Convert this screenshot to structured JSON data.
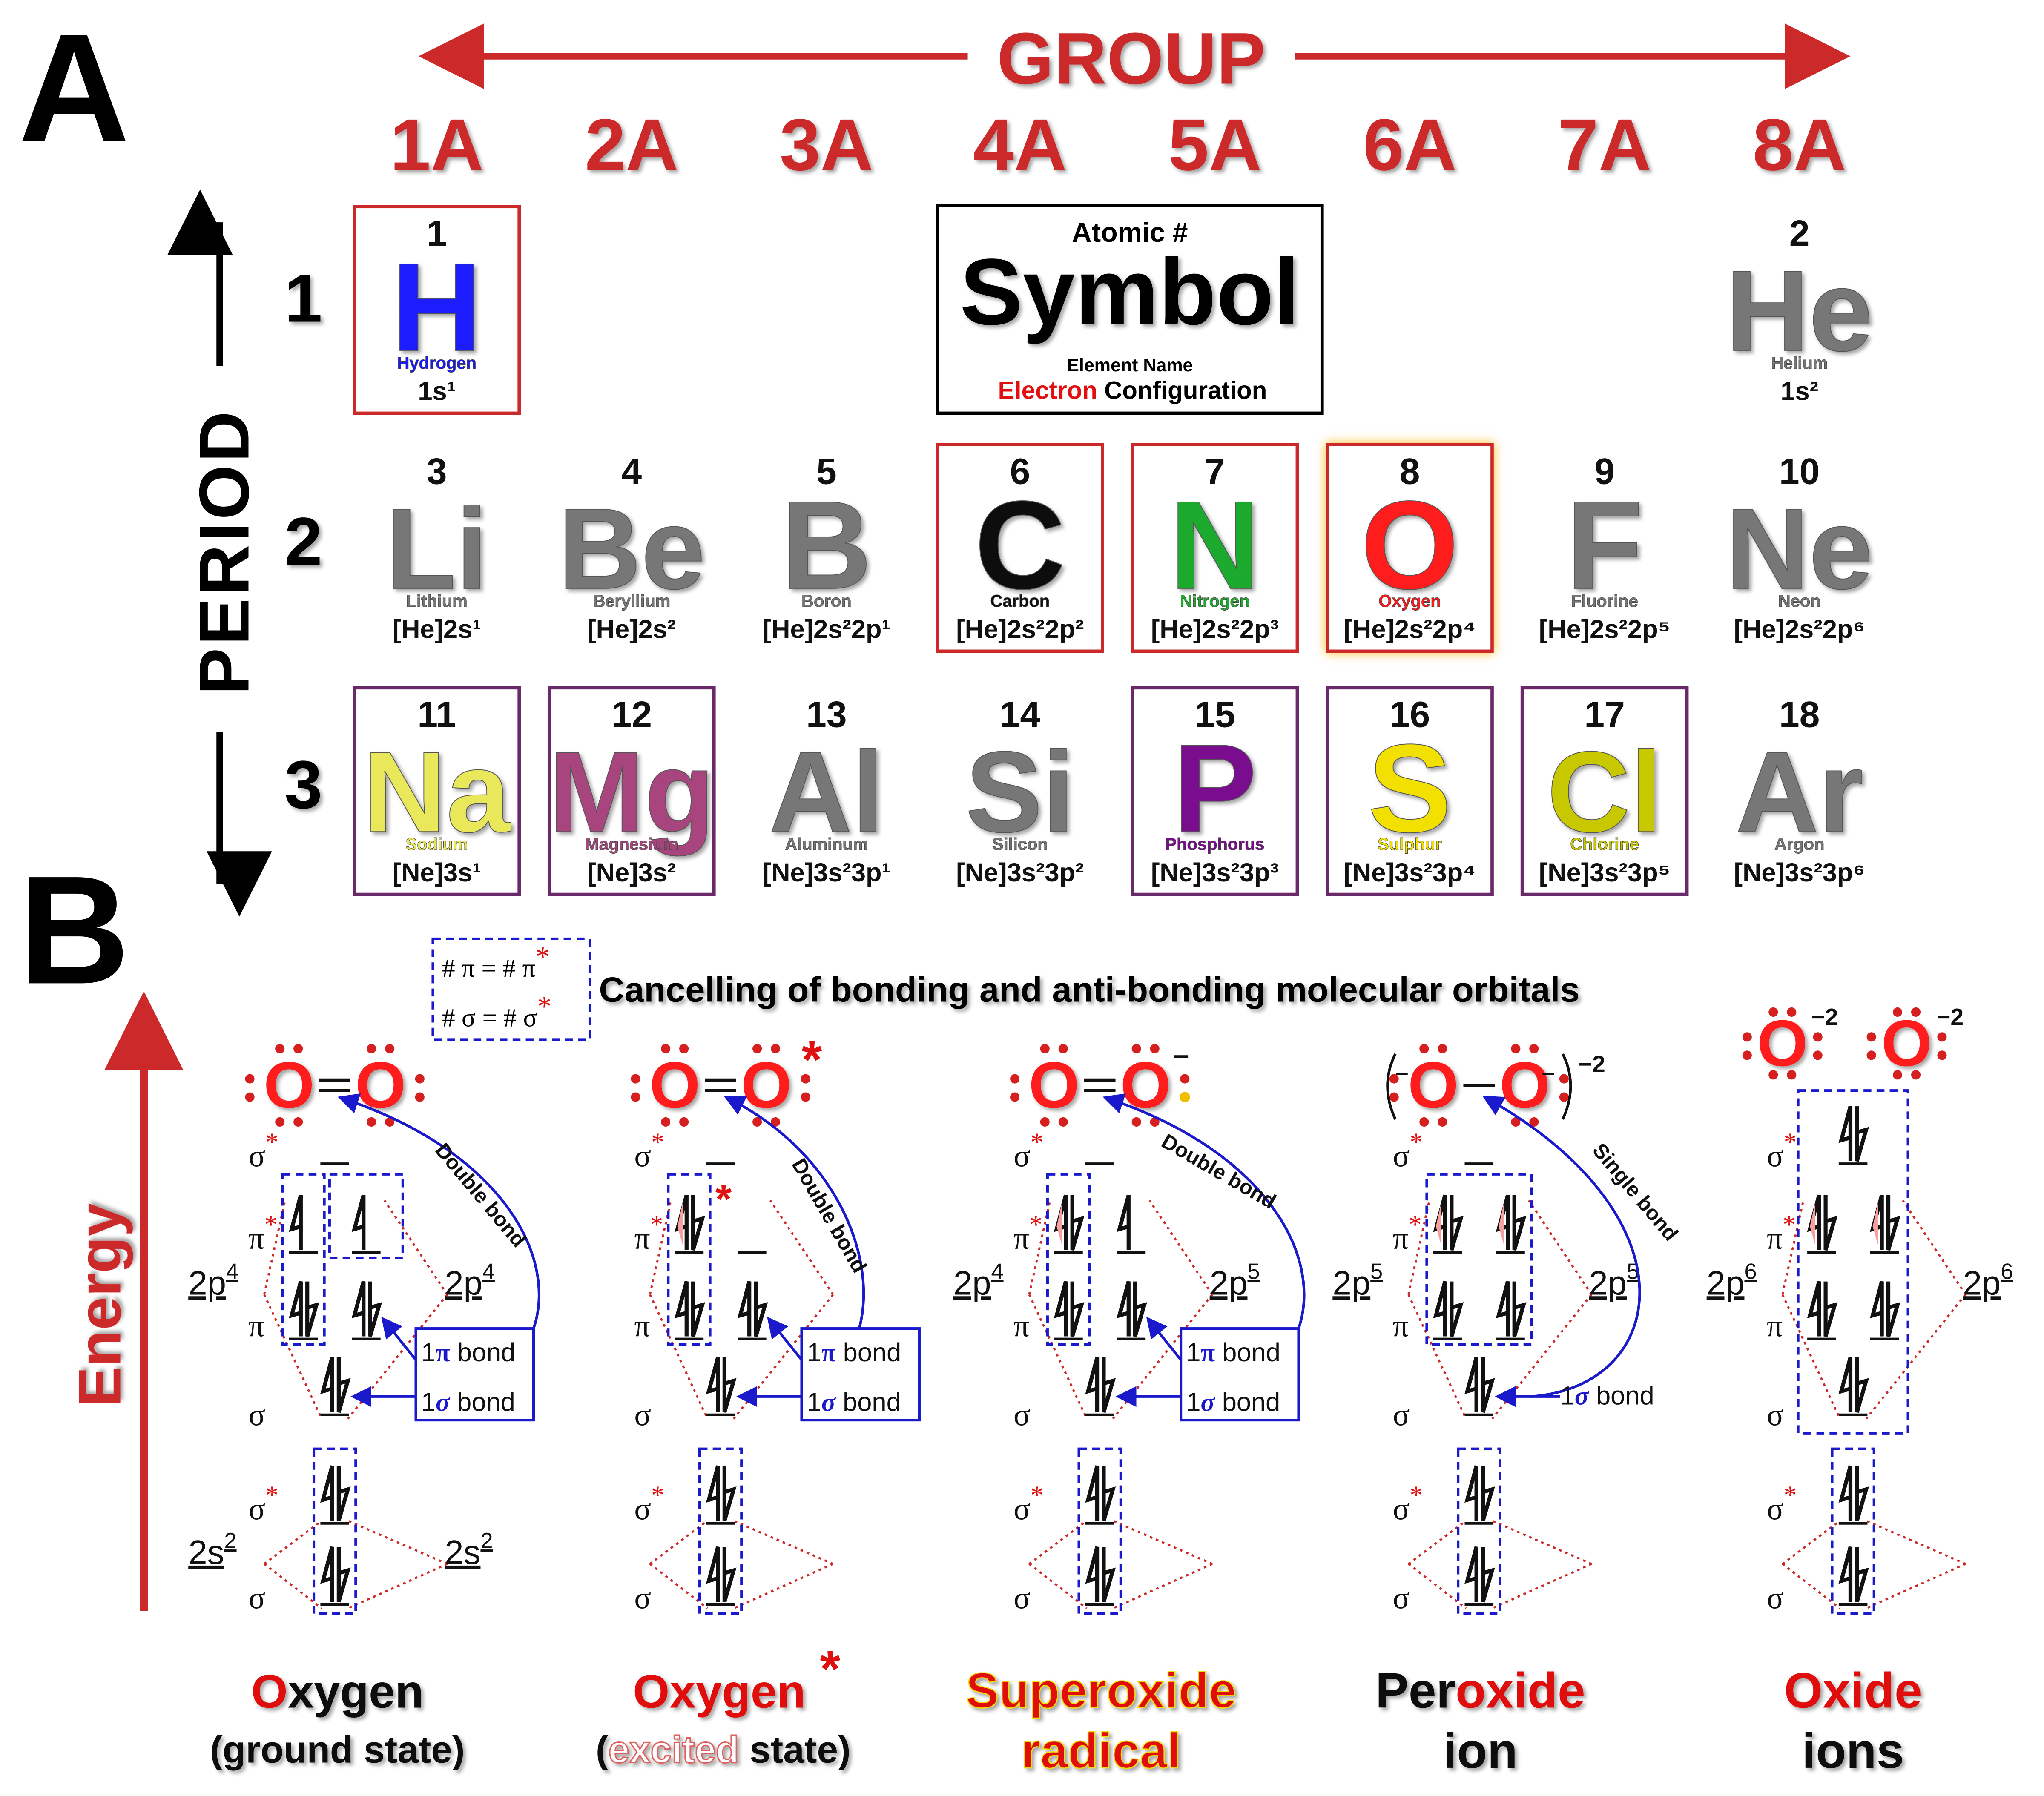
{
  "panels": {
    "a_label": "A",
    "b_label": "B"
  },
  "header": {
    "group_label": "GROUP",
    "period_label": "PERIOD",
    "groups": [
      "1A",
      "2A",
      "3A",
      "4A",
      "5A",
      "6A",
      "7A",
      "8A"
    ],
    "periods": [
      "1",
      "2",
      "3"
    ]
  },
  "legend": {
    "atomic_number": "Atomic #",
    "symbol": "Symbol",
    "element_name": "Element Name",
    "electron": "Electron",
    "configuration": "Configuration"
  },
  "elements": [
    {
      "num": "1",
      "sym": "H",
      "name": "Hydrogen",
      "config": "1s¹",
      "color": "#1a1aff",
      "col": 0,
      "row": 0,
      "box": "#cc2a2a"
    },
    {
      "num": "2",
      "sym": "He",
      "name": "Helium",
      "config": "1s²",
      "color": "#777777",
      "col": 7,
      "row": 0,
      "box": ""
    },
    {
      "num": "3",
      "sym": "Li",
      "name": "Lithium",
      "config": "[He]2s¹",
      "color": "#777777",
      "col": 0,
      "row": 1,
      "box": ""
    },
    {
      "num": "4",
      "sym": "Be",
      "name": "Beryllium",
      "config": "[He]2s²",
      "color": "#777777",
      "col": 1,
      "row": 1,
      "box": ""
    },
    {
      "num": "5",
      "sym": "B",
      "name": "Boron",
      "config": "[He]2s²2p¹",
      "color": "#777777",
      "col": 2,
      "row": 1,
      "box": ""
    },
    {
      "num": "6",
      "sym": "C",
      "name": "Carbon",
      "config": "[He]2s²2p²",
      "color": "#111111",
      "col": 3,
      "row": 1,
      "box": "#cc2a2a"
    },
    {
      "num": "7",
      "sym": "N",
      "name": "Nitrogen",
      "config": "[He]2s²2p³",
      "color": "#1faa2e",
      "col": 4,
      "row": 1,
      "box": "#cc2a2a"
    },
    {
      "num": "8",
      "sym": "O",
      "name": "Oxygen",
      "config": "[He]2s²2p⁴",
      "color": "#ff1a1a",
      "col": 5,
      "row": 1,
      "box": "#cc2a2a"
    },
    {
      "num": "9",
      "sym": "F",
      "name": "Fluorine",
      "config": "[He]2s²2p⁵",
      "color": "#777777",
      "col": 6,
      "row": 1,
      "box": ""
    },
    {
      "num": "10",
      "sym": "Ne",
      "name": "Neon",
      "config": "[He]2s²2p⁶",
      "color": "#777777",
      "col": 7,
      "row": 1,
      "box": ""
    },
    {
      "num": "11",
      "sym": "Na",
      "name": "Sodium",
      "config": "[Ne]3s¹",
      "color": "#e8e85a",
      "col": 0,
      "row": 2,
      "box": "#6a2a6a"
    },
    {
      "num": "12",
      "sym": "Mg",
      "name": "Magnesium",
      "config": "[Ne]3s²",
      "color": "#a8457e",
      "col": 1,
      "row": 2,
      "box": "#6a2a6a"
    },
    {
      "num": "13",
      "sym": "Al",
      "name": "Aluminum",
      "config": "[Ne]3s²3p¹",
      "color": "#777777",
      "col": 2,
      "row": 2,
      "box": ""
    },
    {
      "num": "14",
      "sym": "Si",
      "name": "Silicon",
      "config": "[Ne]3s²3p²",
      "color": "#777777",
      "col": 3,
      "row": 2,
      "box": ""
    },
    {
      "num": "15",
      "sym": "P",
      "name": "Phosphorus",
      "config": "[Ne]3s²3p³",
      "color": "#7a0a8e",
      "col": 4,
      "row": 2,
      "box": "#6a2a6a"
    },
    {
      "num": "16",
      "sym": "S",
      "name": "Sulphur",
      "config": "[Ne]3s²3p⁴",
      "color": "#f2e000",
      "col": 5,
      "row": 2,
      "box": "#6a2a6a"
    },
    {
      "num": "17",
      "sym": "Cl",
      "name": "Chlorine",
      "config": "[Ne]3s²3p⁵",
      "color": "#c8c800",
      "col": 6,
      "row": 2,
      "box": "#6a2a6a"
    },
    {
      "num": "18",
      "sym": "Ar",
      "name": "Argon",
      "config": "[Ne]3s²3p⁶",
      "color": "#777777",
      "col": 7,
      "row": 2,
      "box": ""
    }
  ],
  "mo": {
    "key_pi": "# π = # π",
    "key_sigma": "# σ = # σ",
    "star": "*",
    "title": "Cancelling of bonding and anti-bonding molecular orbitals",
    "energy": "Energy",
    "pi": "π",
    "sigma": "σ",
    "pi_bond_num": "1",
    "pi_bond_sym": "π",
    "sigma_bond_num": "1",
    "sigma_bond_sym": "σ",
    "bond_word": " bond",
    "double_bond": "Double bond",
    "single_bond": "Single bond",
    "charge_minus": "–",
    "charge_m2": "−2",
    "atom": "O",
    "two_s": "2s",
    "two_p": "2p",
    "sup2": "2",
    "sup4": "4",
    "sup5": "5",
    "sup6": "6",
    "cap1_o": "O",
    "cap1_rest": "xygen",
    "cap1_sub": "(ground state)",
    "cap2_main": "Oxygen",
    "cap2_open": "(",
    "cap2_excited": "excited",
    "cap2_rest": " state)",
    "cap3_l1": "Superoxide",
    "cap3_l2": "radical",
    "cap4_per": "Per",
    "cap4_oxide": "oxide",
    "cap4_l2": "ion",
    "cap5_l1": "Oxide",
    "cap5_l2": "ions"
  },
  "colors": {
    "red": "#d62020",
    "bright_red": "#ff1a1a",
    "blue": "#1a1acc",
    "gray": "#777777"
  }
}
